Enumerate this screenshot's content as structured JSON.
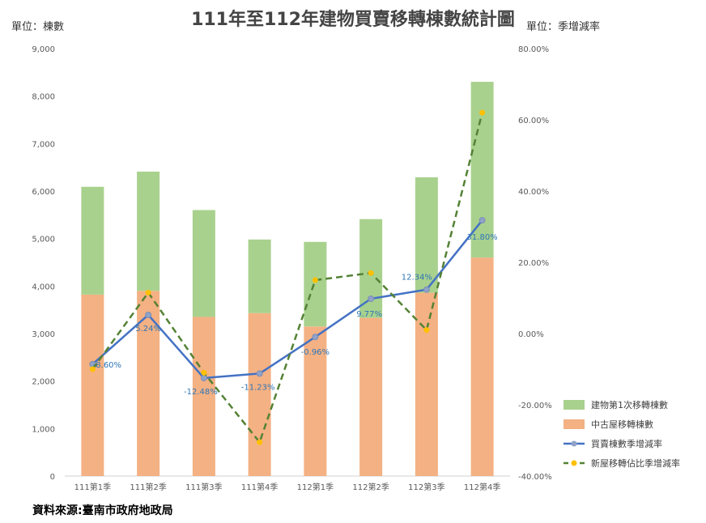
{
  "title": "111年至112年建物買賣移轉棟數統計圖",
  "unit_left": "單位：棟數",
  "unit_right": "單位：季增減率",
  "source": "資料來源:臺南市政府地政局",
  "chart_data": {
    "type": "bar",
    "categories": [
      "111第1季",
      "111第2季",
      "111第3季",
      "111第4季",
      "112第1季",
      "112第2季",
      "112第3季",
      "112第4季"
    ],
    "left_axis": {
      "ylim": [
        0,
        9000
      ],
      "ticks": [
        "0",
        "1,000",
        "2,000",
        "3,000",
        "4,000",
        "5,000",
        "6,000",
        "7,000",
        "8,000",
        "9,000"
      ]
    },
    "right_axis": {
      "ylim": [
        -40,
        80
      ],
      "ticks": [
        "-40.00%",
        "-20.00%",
        "0.00%",
        "20.00%",
        "40.00%",
        "60.00%",
        "80.00%"
      ]
    },
    "stacked_bars": [
      {
        "name": "中古屋移轉棟數",
        "color": "#F4B183",
        "values": [
          3820,
          3900,
          3350,
          3430,
          3150,
          3330,
          3860,
          4600
        ]
      },
      {
        "name": "建物第1次移轉棟數",
        "color": "#A9D18E",
        "values": [
          2270,
          2510,
          2250,
          1550,
          1780,
          2080,
          2430,
          3700
        ]
      }
    ],
    "lines": [
      {
        "name": "買賣棟數季增減率",
        "color": "#4472C4",
        "style": "solid",
        "values": [
          -8.6,
          5.24,
          -12.48,
          -11.23,
          -0.96,
          9.77,
          12.34,
          31.8
        ],
        "labels": [
          "-8.60%",
          "5.24%",
          "-12.48%",
          "-11.23%",
          "-0.96%",
          "9.77%",
          "12.34%",
          "31.80%"
        ]
      },
      {
        "name": "新屋移轉佔比季增減率",
        "color": "#548235",
        "marker_color": "#FFC000",
        "style": "dashed",
        "values": [
          -10,
          11.5,
          -11,
          -30.5,
          15,
          17,
          1,
          62
        ]
      }
    ],
    "legend": [
      {
        "name": "建物第1次移轉棟數",
        "kind": "bar",
        "color": "#A9D18E"
      },
      {
        "name": "中古屋移轉棟數",
        "kind": "bar",
        "color": "#F4B183"
      },
      {
        "name": "買賣棟數季增減率",
        "kind": "line",
        "color": "#4472C4"
      },
      {
        "name": "新屋移轉佔比季增減率",
        "kind": "dashed",
        "color": "#548235"
      }
    ],
    "legend_position": "bottom-right",
    "grid": false
  }
}
